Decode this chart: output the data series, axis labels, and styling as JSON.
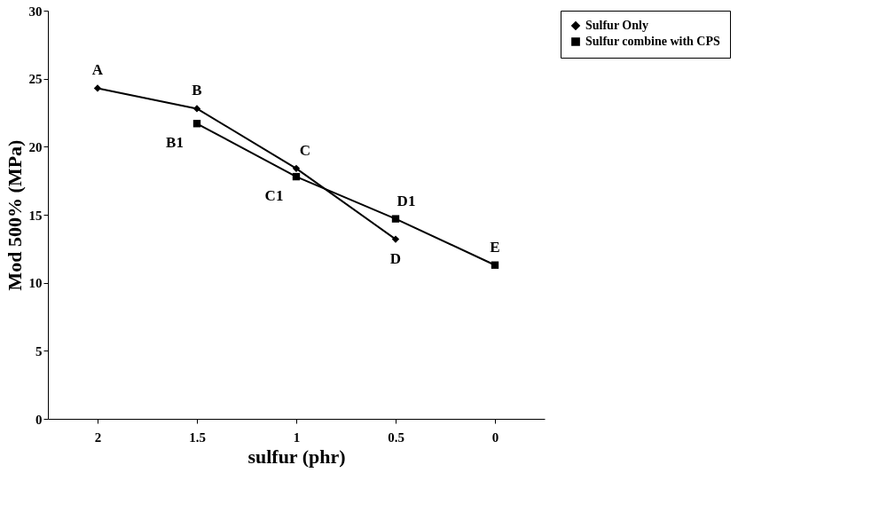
{
  "chart_data": {
    "type": "line",
    "categories": [
      "2",
      "1.5",
      "1",
      "0.5",
      "0"
    ],
    "xlabel": "sulfur (phr)",
    "ylabel": "Mod 500% (MPa)",
    "ylim": [
      0,
      30
    ],
    "yticks": [
      0,
      5,
      10,
      15,
      20,
      25,
      30
    ],
    "series": [
      {
        "name": "Sulfur Only",
        "color": "#000000",
        "marker": "diamond",
        "values": [
          24.3,
          22.8,
          18.4,
          13.2,
          null
        ]
      },
      {
        "name": "Sulfur combine with CPS",
        "color": "#000000",
        "marker": "square",
        "values": [
          null,
          21.7,
          17.8,
          14.7,
          11.3
        ]
      }
    ],
    "annotations": [
      {
        "text": "A",
        "x": "2",
        "y": 24.3
      },
      {
        "text": "B",
        "x": "1.5",
        "y": 22.8
      },
      {
        "text": "B1",
        "x": "1.5",
        "y": 21.7
      },
      {
        "text": "C",
        "x": "1",
        "y": 18.4
      },
      {
        "text": "C1",
        "x": "1",
        "y": 17.8
      },
      {
        "text": "D",
        "x": "0.5",
        "y": 13.2
      },
      {
        "text": "D1",
        "x": "0.5",
        "y": 14.7
      },
      {
        "text": "E",
        "x": "0",
        "y": 11.3
      }
    ],
    "grid": false,
    "legend": "right",
    "line_style": "solid"
  }
}
